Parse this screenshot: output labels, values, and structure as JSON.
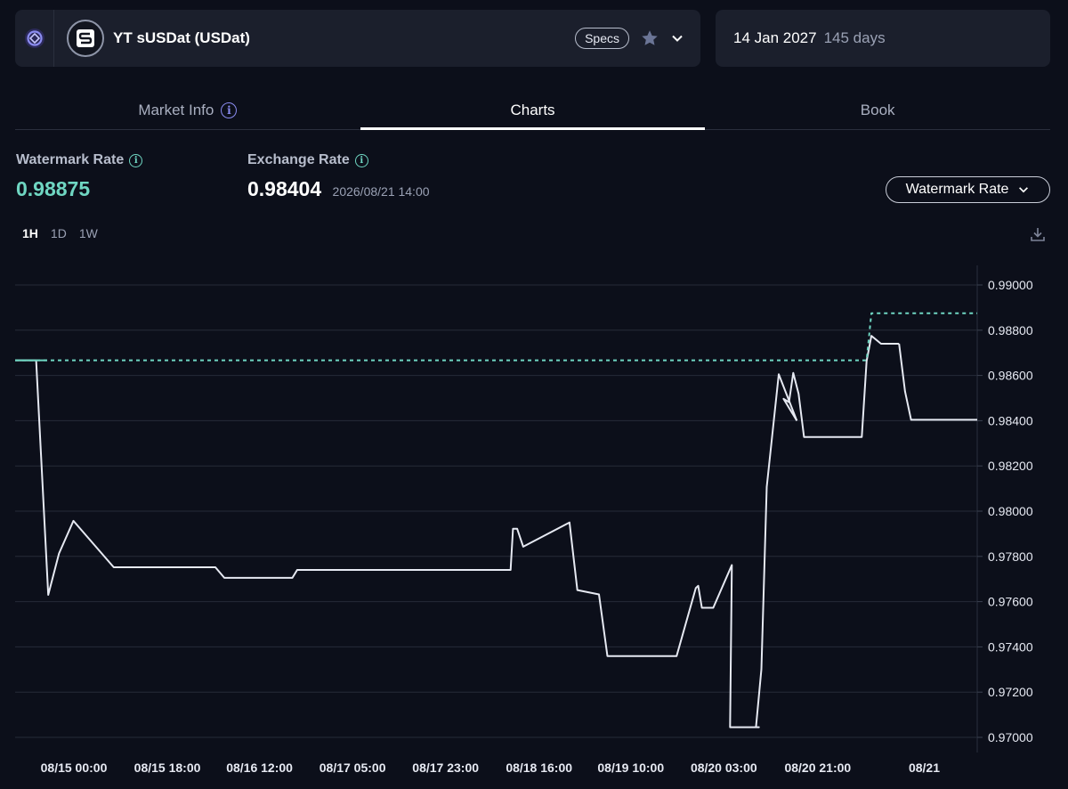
{
  "header": {
    "market_name": "YT sUSDat (USDat)",
    "specs_label": "Specs",
    "logo_icon": "pendle-logo-icon",
    "market_icon": "susdat-token-icon"
  },
  "maturity": {
    "date": "14 Jan 2027",
    "days": "145 days"
  },
  "tabs": [
    {
      "label": "Market Info",
      "active": false
    },
    {
      "label": "Charts",
      "active": true
    },
    {
      "label": "Book",
      "active": false
    }
  ],
  "stats": {
    "watermark_label": "Watermark Rate",
    "watermark_value": "0.98875",
    "exchange_label": "Exchange Rate",
    "exchange_value": "0.98404",
    "exchange_time": "2026/08/21 14:00"
  },
  "selector": {
    "label": "Watermark Rate"
  },
  "timeframes": [
    {
      "label": "1H",
      "active": true
    },
    {
      "label": "1D",
      "active": false
    },
    {
      "label": "1W",
      "active": false
    }
  ],
  "colors": {
    "background": "#0c0f1a",
    "panel": "#1b1f2c",
    "accent_green": "#6fd6c2",
    "line_white": "#e6e9f2"
  },
  "chart_data": {
    "type": "line",
    "ylim": [
      0.97,
      0.99
    ],
    "yticks": [
      "0.99000",
      "0.98800",
      "0.98600",
      "0.98400",
      "0.98200",
      "0.98000",
      "0.97800",
      "0.97600",
      "0.97400",
      "0.97200",
      "0.97000"
    ],
    "xticks": [
      "08/15 00:00",
      "08/15 18:00",
      "08/16 12:00",
      "08/17 05:00",
      "08/17 23:00",
      "08/18 16:00",
      "08/19 10:00",
      "08/20 03:00",
      "08/20 21:00",
      "08/21"
    ],
    "grid": true,
    "series": [
      {
        "style": "solid",
        "color": "#e6e9f2",
        "x": [
          0,
          3.5,
          5.5,
          7.3,
          9.7,
          16.4,
          18.6,
          33.3,
          34.8,
          44.3,
          46.1,
          46.9,
          48.0,
          49.0,
          52.5,
          82.4,
          82.8,
          83.5,
          84.5,
          92.2,
          93.5,
          97.1,
          98.5,
          100.6,
          101.7,
          110.0,
          113.2,
          113.6,
          114.2,
          115.3,
          116.1,
          119.2,
          118.9,
          119.6,
          120.5,
          123.7,
          123.2,
          124.1,
          125.0,
          127.0,
          130.0
        ],
        "y": [
          0.98667,
          0.98667,
          0.9763,
          0.97813,
          0.97957,
          0.97752,
          0.97752,
          0.97752,
          0.97705,
          0.97705,
          0.97705,
          0.9774,
          0.9774,
          0.9774,
          0.9774,
          0.9774,
          0.97922,
          0.97922,
          0.97843,
          0.9795,
          0.97651,
          0.97632,
          0.97359,
          0.97359,
          0.97359,
          0.97359,
          0.9766,
          0.9767,
          0.97573,
          0.97573,
          0.97573,
          0.97762,
          0.97045,
          0.97045,
          0.97045,
          0.97045,
          0.97045,
          0.97301,
          0.98107,
          0.98605,
          0.984
        ]
      },
      {
        "style": "solid",
        "color": "#e6e9f2",
        "x": [
          127.8,
          128.7,
          129.4,
          130.3,
          131.2,
          140.0,
          140.8,
          141.6,
          142.4,
          144.0,
          145.0,
          146.0,
          147.0
        ],
        "y": [
          0.98497,
          0.98482,
          0.98611,
          0.98519,
          0.98328,
          0.98328,
          0.98328,
          0.98663,
          0.98775,
          0.9874,
          0.9874,
          0.9874,
          0.9874
        ]
      },
      {
        "style": "solid",
        "color": "#e6e9f2",
        "x": [
          148.0,
          149.0,
          150.0,
          160.0
        ],
        "y": [
          0.98529,
          0.98404,
          0.98404,
          0.98404
        ]
      },
      {
        "style": "dashed",
        "color": "#6fd6c2",
        "x": [
          0,
          141.6,
          142.4,
          160.0
        ],
        "y": [
          0.98667,
          0.98667,
          0.98875,
          0.98875
        ]
      }
    ]
  }
}
